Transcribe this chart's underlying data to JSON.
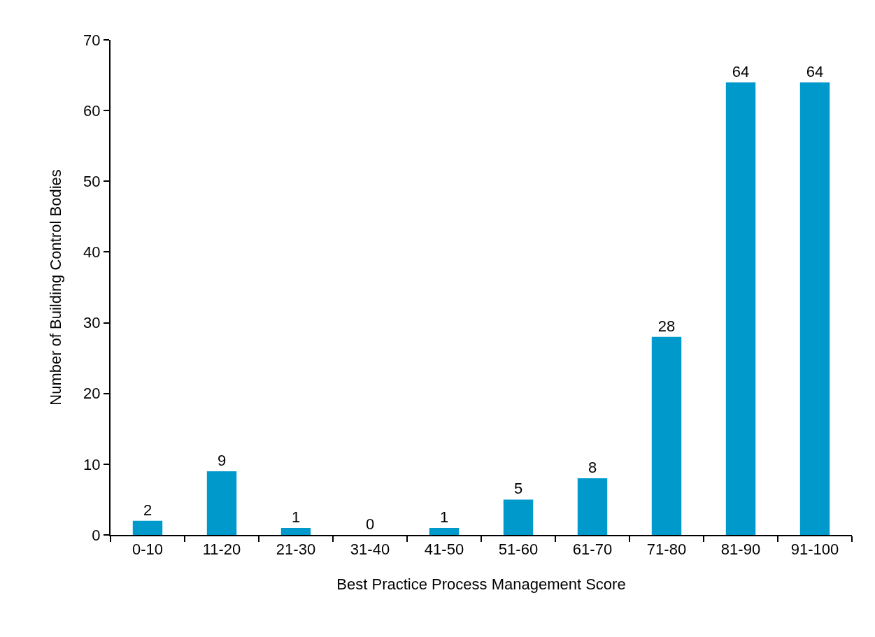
{
  "chart_data": {
    "type": "bar",
    "xlabel": "Best Practice Process Management Score",
    "ylabel": "Number of Building Control Bodies",
    "categories": [
      "0-10",
      "11-20",
      "21-30",
      "31-40",
      "41-50",
      "51-60",
      "61-70",
      "71-80",
      "81-90",
      "91-100"
    ],
    "values": [
      2,
      9,
      1,
      0,
      1,
      5,
      8,
      28,
      64,
      64
    ],
    "color": "#0099cc",
    "ylim": [
      0,
      70
    ],
    "yticks": [
      0,
      10,
      20,
      30,
      40,
      50,
      60,
      70
    ],
    "data_labels": true
  }
}
